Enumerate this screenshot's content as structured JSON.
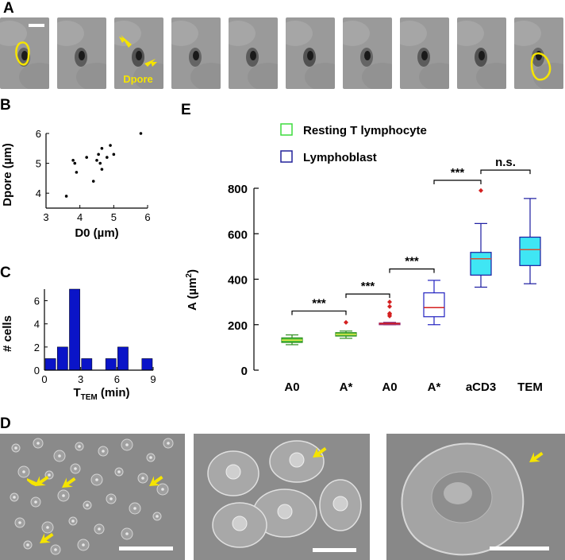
{
  "panels": {
    "a": "A",
    "b": "B",
    "c": "C",
    "d": "D",
    "e": "E"
  },
  "panel_a": {
    "frame_count": 10,
    "annotation": "Dpore",
    "colors": {
      "outline": "#f5e400",
      "background": "#9a9a9a",
      "scale_bar": "#ffffff"
    }
  },
  "panel_d": {
    "image_count": 3,
    "colors": {
      "arrow": "#f5e400",
      "background": "#8a8a8a",
      "scale_bar": "#ffffff"
    }
  },
  "chart_data": [
    {
      "id": "B",
      "type": "scatter",
      "xlabel": "D0 (µm)",
      "ylabel": "Dpore (µm)",
      "xlim": [
        3,
        6
      ],
      "ylim": [
        3.5,
        6
      ],
      "xticks": [
        "3",
        "4",
        "5",
        "6"
      ],
      "yticks": [
        "4",
        "5",
        "6"
      ],
      "points": [
        {
          "x": 3.6,
          "y": 3.9
        },
        {
          "x": 3.8,
          "y": 5.1
        },
        {
          "x": 3.85,
          "y": 5.0
        },
        {
          "x": 3.9,
          "y": 4.7
        },
        {
          "x": 4.2,
          "y": 5.2
        },
        {
          "x": 4.4,
          "y": 4.4
        },
        {
          "x": 4.5,
          "y": 5.1
        },
        {
          "x": 4.55,
          "y": 5.3
        },
        {
          "x": 4.6,
          "y": 5.0
        },
        {
          "x": 4.65,
          "y": 4.8
        },
        {
          "x": 4.65,
          "y": 5.5
        },
        {
          "x": 4.8,
          "y": 5.2
        },
        {
          "x": 4.9,
          "y": 5.6
        },
        {
          "x": 5.0,
          "y": 5.3
        },
        {
          "x": 5.8,
          "y": 6.0
        }
      ],
      "colors": {
        "point": "#000000"
      }
    },
    {
      "id": "C",
      "type": "bar",
      "xlabel_main": "T",
      "xlabel_sub": "TEM",
      "xlabel_unit": " (min)",
      "ylabel": "# cells",
      "xlim": [
        0,
        9
      ],
      "ylim": [
        0,
        7
      ],
      "xticks": [
        "0",
        "3",
        "6",
        "9"
      ],
      "yticks": [
        "0",
        "2",
        "4",
        "6"
      ],
      "bars": [
        {
          "x": 0.5,
          "y": 1
        },
        {
          "x": 1.5,
          "y": 2
        },
        {
          "x": 2.5,
          "y": 7
        },
        {
          "x": 3.5,
          "y": 1
        },
        {
          "x": 5.5,
          "y": 1
        },
        {
          "x": 6.5,
          "y": 2
        },
        {
          "x": 8.5,
          "y": 1
        }
      ],
      "bin_width": 1,
      "colors": {
        "bar": "#0a14c8"
      }
    },
    {
      "id": "E",
      "type": "box",
      "ylabel_main": "A (µm",
      "ylabel_sup": "2",
      "ylabel_close": ")",
      "ylim": [
        0,
        800
      ],
      "yticks": [
        "0",
        "200",
        "400",
        "600",
        "800"
      ],
      "categories": [
        "A0",
        "A*",
        "A0",
        "A*",
        "aCD3",
        "TEM"
      ],
      "legend": [
        {
          "name": "Resting T lymphocyte",
          "color": "#3ddc3d"
        },
        {
          "name": "Lymphoblast",
          "color": "#22229a"
        }
      ],
      "boxes": [
        {
          "whisker_low": 112,
          "q1": 122,
          "median": 132,
          "q3": 142,
          "whisker_high": 155,
          "outliers": [],
          "fill": "#4cc13a",
          "edge": "#2f8f20",
          "median_color": "#e8e84a"
        },
        {
          "whisker_low": 140,
          "q1": 150,
          "median": 157,
          "q3": 165,
          "whisker_high": 172,
          "outliers": [
            210
          ],
          "fill": "#4cc13a",
          "edge": "#2f8f20",
          "median_color": "#e8e84a"
        },
        {
          "whisker_low": 200,
          "q1": 202,
          "median": 205,
          "q3": 207,
          "whisker_high": 210,
          "outliers": [
            238,
            245,
            250,
            280,
            300
          ],
          "fill": "#ffffff",
          "edge": "#8a1a6a",
          "median_color": "#d42020"
        },
        {
          "whisker_low": 200,
          "q1": 235,
          "median": 275,
          "q3": 340,
          "whisker_high": 395,
          "outliers": [],
          "fill": "#ffffff",
          "edge": "#2222c0",
          "median_color": "#d42020"
        },
        {
          "whisker_low": 365,
          "q1": 418,
          "median": 490,
          "q3": 518,
          "whisker_high": 645,
          "outliers": [
            790
          ],
          "fill": "#3fe6f4",
          "edge": "#1a1aa0",
          "median_color": "#d45030"
        },
        {
          "whisker_low": 380,
          "q1": 460,
          "median": 530,
          "q3": 585,
          "whisker_high": 755,
          "outliers": [],
          "fill": "#3fe6f4",
          "edge": "#1a1aa0",
          "median_color": "#d45030"
        }
      ],
      "significance": [
        {
          "from": 0,
          "to": 1,
          "label": "***",
          "level": 260
        },
        {
          "from": 1,
          "to": 2,
          "label": "***",
          "level": 335
        },
        {
          "from": 2,
          "to": 3,
          "label": "***",
          "level": 445
        },
        {
          "from": 3,
          "to": 4,
          "label": "***",
          "level": 835
        },
        {
          "from": 4,
          "to": 5,
          "label": "n.s.",
          "level": 880
        }
      ],
      "colors": {
        "outlier": "#d42020"
      }
    }
  ]
}
